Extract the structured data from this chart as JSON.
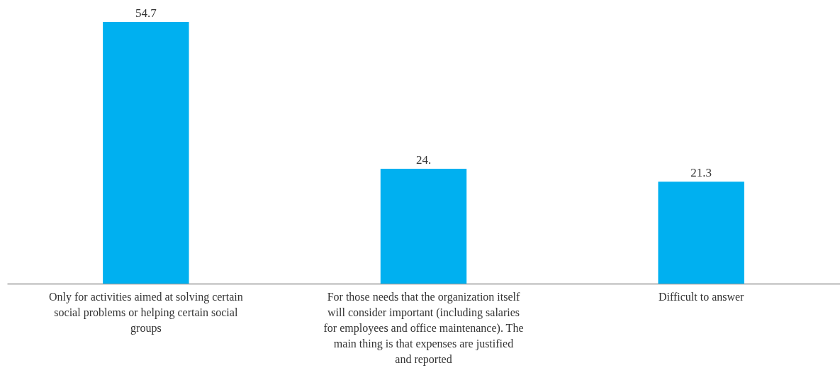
{
  "chart_data": {
    "type": "bar",
    "categories": [
      "Only for activities aimed at solving certain social problems or helping certain social groups",
      "For those needs that the organization itself will consider important (including salaries for employees and office maintenance). The main thing is that expenses are justified and reported",
      "Difficult to answer"
    ],
    "values": [
      54.7,
      24,
      21.3
    ],
    "value_labels": [
      "54.7",
      "24.",
      "21.3"
    ],
    "color": "#00b0f0",
    "grid": false
  }
}
